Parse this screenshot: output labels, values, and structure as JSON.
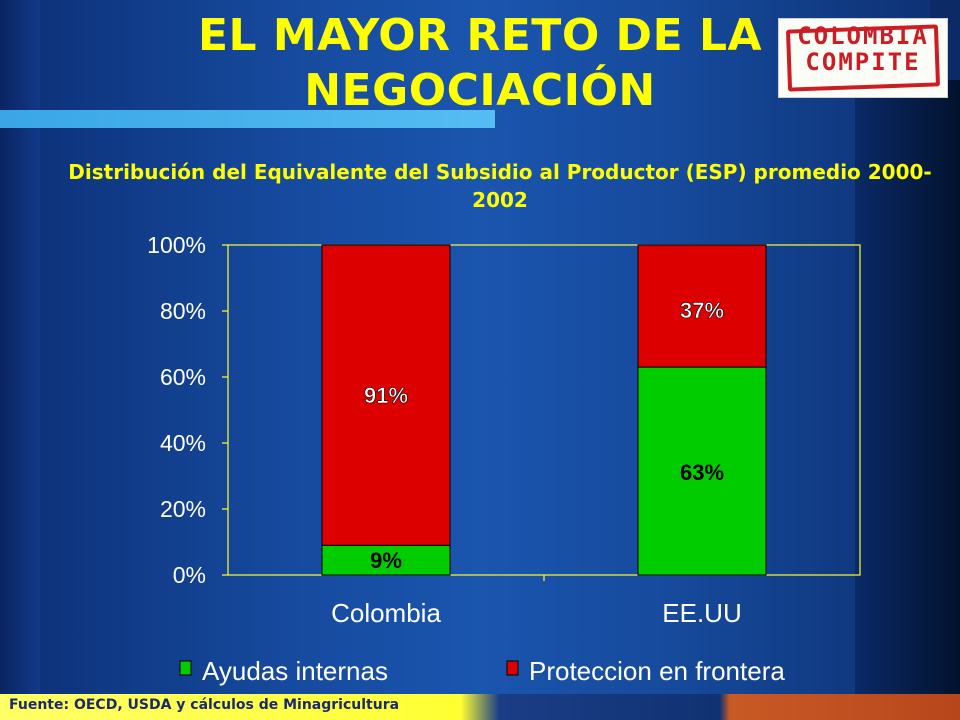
{
  "slide": {
    "title": "EL MAYOR RETO DE LA NEGOCIACIÓN",
    "logo": {
      "line1": "COLOMBIA",
      "line2": "COMPITE"
    },
    "source": "Fuente: OECD, USDA y cálculos de  Minagricultura"
  },
  "chart_data": {
    "type": "bar",
    "stacked": true,
    "title": "Distribución del Equivalente del Subsidio al Productor (ESP) promedio 2000-2002",
    "categories": [
      "Colombia",
      "EE.UU"
    ],
    "series": [
      {
        "name": "Ayudas internas",
        "values": [
          9,
          63
        ],
        "labels": [
          "9%",
          "63%"
        ],
        "color": "#00cc00"
      },
      {
        "name": "Proteccion en frontera",
        "values": [
          91,
          37
        ],
        "labels": [
          "91%",
          "37%"
        ],
        "color": "#dd0000"
      }
    ],
    "yticks": [
      "0%",
      "20%",
      "40%",
      "60%",
      "80%",
      "100%"
    ],
    "ylim": [
      0,
      100
    ],
    "axis_color": "#ffff33",
    "legend_position": "bottom",
    "grid": false
  }
}
